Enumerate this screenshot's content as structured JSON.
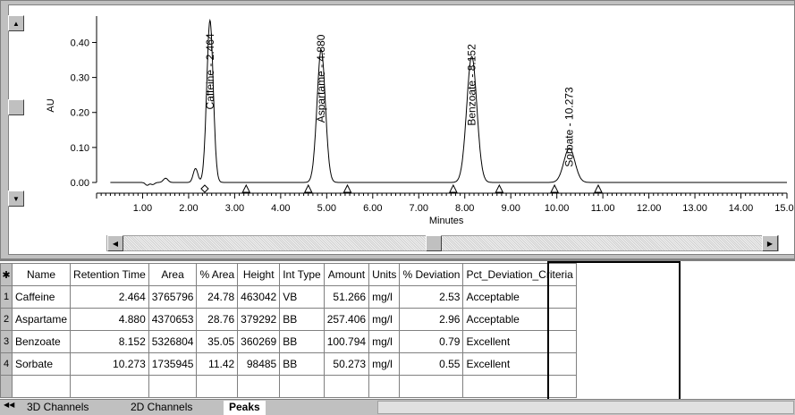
{
  "chart_data": {
    "type": "line",
    "ylabel": "AU",
    "xlabel": "Minutes",
    "xlim": [
      0.0,
      15.0
    ],
    "ylim": [
      -0.02,
      0.47
    ],
    "x_ticks": [
      "1.00",
      "2.00",
      "3.00",
      "4.00",
      "5.00",
      "6.00",
      "7.00",
      "8.00",
      "9.00",
      "10.00",
      "11.00",
      "12.00",
      "13.00",
      "14.00",
      "15.00"
    ],
    "y_ticks": [
      "0.00",
      "0.10",
      "0.20",
      "0.30",
      "0.40"
    ],
    "peaks": [
      {
        "label": "Caffeine - 2.464",
        "rt": 2.464,
        "height": 0.463,
        "width": 0.07
      },
      {
        "label": "Aspartame - 4.880",
        "rt": 4.88,
        "height": 0.379,
        "width": 0.09
      },
      {
        "label": "Benzoate - 8.152",
        "rt": 8.152,
        "height": 0.36,
        "width": 0.11
      },
      {
        "label": "Sorbate - 10.273",
        "rt": 10.273,
        "height": 0.098,
        "width": 0.12
      }
    ],
    "minor_peaks": [
      {
        "rt": 1.5,
        "height": 0.012,
        "width": 0.05
      },
      {
        "rt": 2.15,
        "height": 0.04,
        "width": 0.05
      },
      {
        "rt": 1.1,
        "height": -0.008,
        "width": 0.04
      },
      {
        "rt": 1.22,
        "height": -0.006,
        "width": 0.04
      }
    ],
    "markers": [
      {
        "x": 2.35,
        "shape": "diamond"
      },
      {
        "x": 3.25,
        "shape": "triangle"
      },
      {
        "x": 4.6,
        "shape": "triangle"
      },
      {
        "x": 5.45,
        "shape": "triangle"
      },
      {
        "x": 7.75,
        "shape": "triangle"
      },
      {
        "x": 8.75,
        "shape": "triangle"
      },
      {
        "x": 9.95,
        "shape": "triangle"
      },
      {
        "x": 10.9,
        "shape": "triangle"
      }
    ]
  },
  "table": {
    "headers": [
      "Name",
      "Retention Time",
      "Area",
      "% Area",
      "Height",
      "Int Type",
      "Amount",
      "Units",
      "% Deviation",
      "Pct_Deviation_Criteria"
    ],
    "rows": [
      {
        "n": "1",
        "name": "Caffeine",
        "rt": "2.464",
        "area": "3765796",
        "pct_area": "24.78",
        "height": "463042",
        "int_type": "VB",
        "amount": "51.266",
        "units": "mg/l",
        "pct_dev": "2.53",
        "criteria": "Acceptable"
      },
      {
        "n": "2",
        "name": "Aspartame",
        "rt": "4.880",
        "area": "4370653",
        "pct_area": "28.76",
        "height": "379292",
        "int_type": "BB",
        "amount": "257.406",
        "units": "mg/l",
        "pct_dev": "2.96",
        "criteria": "Acceptable"
      },
      {
        "n": "3",
        "name": "Benzoate",
        "rt": "8.152",
        "area": "5326804",
        "pct_area": "35.05",
        "height": "360269",
        "int_type": "BB",
        "amount": "100.794",
        "units": "mg/l",
        "pct_dev": "0.79",
        "criteria": "Excellent"
      },
      {
        "n": "4",
        "name": "Sorbate",
        "rt": "10.273",
        "area": "1735945",
        "pct_area": "11.42",
        "height": "98485",
        "int_type": "BB",
        "amount": "50.273",
        "units": "mg/l",
        "pct_dev": "0.55",
        "criteria": "Excellent"
      }
    ]
  },
  "tabs": [
    "3D Channels",
    "2D Channels",
    "Peaks"
  ],
  "active_tab": "Peaks"
}
